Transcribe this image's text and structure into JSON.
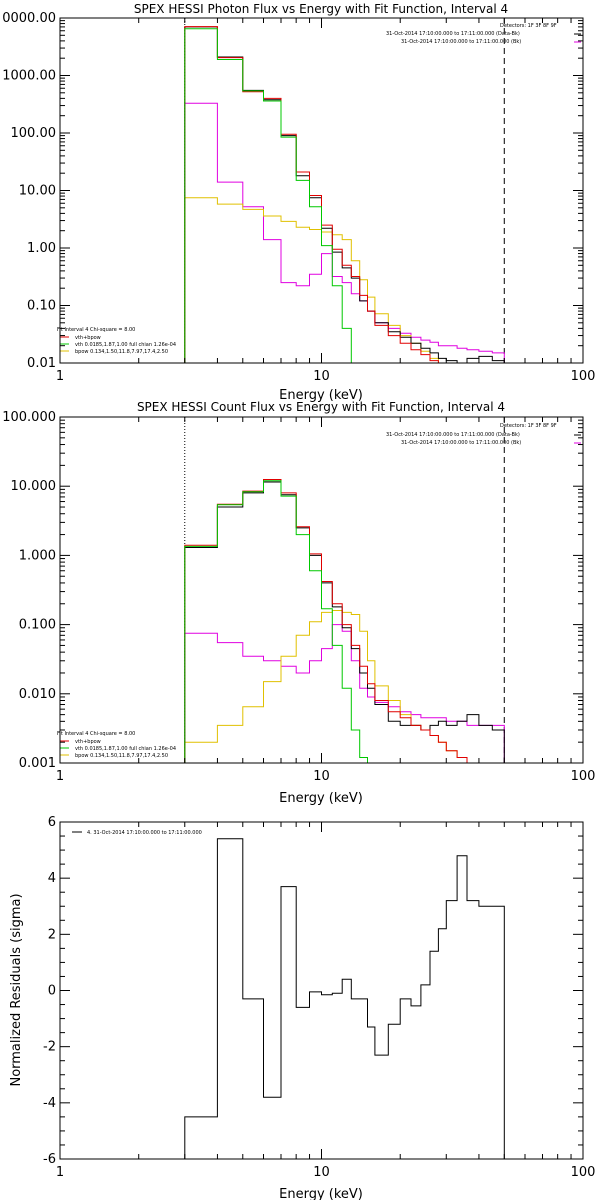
{
  "colors": {
    "data": "#000000",
    "total": "#e00000",
    "vth": "#00c800",
    "bpow": "#e0c000",
    "background": "#e000e0"
  },
  "chart_data": [
    {
      "type": "line",
      "title": "SPEX HESSI Photon Flux vs Energy with Fit Function, Interval 4",
      "xlabel": "Energy (keV)",
      "ylabel": "",
      "x_scale": "log",
      "y_scale": "log",
      "xlim": [
        1,
        100
      ],
      "ylim": [
        0.01,
        10000
      ],
      "xtick_labels": [
        "1",
        "10",
        "100"
      ],
      "ytick_labels": [
        "0.01",
        "0.10",
        "1.00",
        "10.00",
        "100.00",
        "1000.00",
        "0000.00"
      ],
      "bin_edges_kev": [
        3,
        4,
        5,
        6,
        7,
        8,
        9,
        10,
        11,
        12,
        13,
        14,
        15,
        16,
        18,
        20,
        22,
        24,
        26,
        28,
        30,
        33,
        36,
        40,
        45,
        50
      ],
      "markers": {
        "dotted_line_kev": 3,
        "dashed_line_kev": 50
      },
      "legend_topright": [
        "Detectors: 1F 3F 8F 9F",
        "31-Oct-2014 17:10:00.000 to 17:11:00.000 (Data-Bk)",
        "31-Oct-2014 17:10:00.000 to 17:11:00.000 (Bk)"
      ],
      "legend_bottomleft": [
        "Fit Interval 4   Chi-square = 8.00",
        "vth+bpow",
        "vth 0.0185,1.87,1.00  full chian 1.26e-04",
        "bpow 0.134,1.50,11.8,7.97,17.4,2.50"
      ],
      "series": [
        {
          "name": "Data-Bk",
          "values": [
            7000,
            2100,
            550,
            380,
            90,
            18,
            7.5,
            2.2,
            0.85,
            0.45,
            0.3,
            0.12,
            0.08,
            0.05,
            0.035,
            0.028,
            0.022,
            0.018,
            0.015,
            0.012,
            0.011,
            0.01,
            0.012,
            0.013,
            0.011
          ]
        },
        {
          "name": "vth+bpow",
          "values": [
            7100,
            2050,
            520,
            400,
            95,
            21,
            8.2,
            2.5,
            0.95,
            0.5,
            0.32,
            0.15,
            0.08,
            0.045,
            0.03,
            0.022,
            0.017,
            0.014,
            0.011,
            0.009,
            0.007
          ]
        },
        {
          "name": "vth 0.0185,1.87,1.00  full chian 1.26e-04",
          "values": [
            6500,
            1900,
            540,
            360,
            85,
            15,
            5.2,
            1.1,
            0.22,
            0.04,
            0.009,
            0.002
          ]
        },
        {
          "name": "bpow 0.134,1.50,11.8,7.97,17.4,2.50",
          "values": [
            7.5,
            5.8,
            4.7,
            3.6,
            2.9,
            2.3,
            2.1,
            1.9,
            1.7,
            1.4,
            0.6,
            0.28,
            0.14,
            0.072,
            0.045,
            0.03,
            0.022,
            0.016,
            0.012,
            0.009,
            0.007
          ]
        },
        {
          "name": "Bk",
          "values": [
            330,
            14,
            5.2,
            1.4,
            0.25,
            0.22,
            0.35,
            0.8,
            0.32,
            0.25,
            0.16,
            0.12,
            0.08,
            0.05,
            0.04,
            0.033,
            0.028,
            0.025,
            0.023,
            0.02,
            0.02,
            0.018,
            0.017,
            0.016,
            0.015
          ]
        }
      ]
    },
    {
      "type": "line",
      "title": "SPEX HESSI Count Flux vs Energy with Fit Function, Interval 4",
      "xlabel": "Energy (keV)",
      "ylabel": "",
      "x_scale": "log",
      "y_scale": "log",
      "xlim": [
        1,
        100
      ],
      "ylim": [
        0.001,
        100
      ],
      "xtick_labels": [
        "1",
        "10",
        "100"
      ],
      "ytick_labels": [
        "0.001",
        "0.010",
        "0.100",
        "1.000",
        "10.000",
        "100.000"
      ],
      "bin_edges_kev": [
        3,
        4,
        5,
        6,
        7,
        8,
        9,
        10,
        11,
        12,
        13,
        14,
        15,
        16,
        18,
        20,
        22,
        24,
        26,
        28,
        30,
        33,
        36,
        40,
        45,
        50
      ],
      "markers": {
        "dotted_line_kev": 3,
        "dashed_line_kev": 50
      },
      "legend_topright": [
        "Detectors: 1F 3F 8F 9F",
        "31-Oct-2014 17:10:00.000 to 17:11:00.000 (Data-Bk)",
        "31-Oct-2014 17:10:00.000 to 17:11:00.000 (Bk)"
      ],
      "legend_bottomleft": [
        "Fit Interval 4   Chi-square = 8.00",
        "vth+bpow",
        "vth 0.0185,1.87,1.00  full chian 1.26e-04",
        "bpow 0.134,1.50,11.8,7.97,17.4,2.50"
      ],
      "series": [
        {
          "name": "Data-Bk",
          "values": [
            1.3,
            5.0,
            8.0,
            11.5,
            7.5,
            2.5,
            1.0,
            0.4,
            0.18,
            0.09,
            0.045,
            0.02,
            0.012,
            0.007,
            0.004,
            0.0035,
            0.0035,
            0.003,
            0.0035,
            0.004,
            0.0035,
            0.004,
            0.005,
            0.0035,
            0.003
          ]
        },
        {
          "name": "vth+bpow",
          "values": [
            1.4,
            5.5,
            8.5,
            12.5,
            8.0,
            2.6,
            1.05,
            0.42,
            0.2,
            0.1,
            0.05,
            0.025,
            0.014,
            0.008,
            0.0055,
            0.0045,
            0.0035,
            0.003,
            0.0025,
            0.002,
            0.0015,
            0.0012,
            0.001
          ]
        },
        {
          "name": "vth 0.0185,1.87,1.00  full chian 1.26e-04",
          "values": [
            1.35,
            5.4,
            8.3,
            12.0,
            7.2,
            2.0,
            0.6,
            0.17,
            0.05,
            0.012,
            0.003,
            0.0012
          ]
        },
        {
          "name": "bpow 0.134,1.50,11.8,7.97,17.4,2.50",
          "values": [
            0.002,
            0.0035,
            0.0065,
            0.015,
            0.035,
            0.07,
            0.11,
            0.15,
            0.16,
            0.15,
            0.14,
            0.08,
            0.03,
            0.013,
            0.008,
            0.005,
            0.0035,
            0.003,
            0.0025,
            0.002,
            0.0015,
            0.0012,
            0.001
          ]
        },
        {
          "name": "Bk",
          "values": [
            0.075,
            0.055,
            0.035,
            0.03,
            0.025,
            0.02,
            0.03,
            0.045,
            0.1,
            0.08,
            0.03,
            0.012,
            0.009,
            0.0075,
            0.0065,
            0.0055,
            0.005,
            0.0045,
            0.0045,
            0.0045,
            0.004,
            0.004,
            0.0035,
            0.0035,
            0.0035
          ]
        }
      ]
    },
    {
      "type": "line",
      "title": "",
      "xlabel": "Energy (keV)",
      "ylabel": "Normalized Residuals (sigma)",
      "x_scale": "log",
      "y_scale": "linear",
      "xlim": [
        1,
        100
      ],
      "ylim": [
        -6,
        6
      ],
      "xtick_labels": [
        "1",
        "10",
        "100"
      ],
      "ytick_labels": [
        "-6",
        "-4",
        "-2",
        "0",
        "2",
        "4",
        "6"
      ],
      "bin_edges_kev": [
        3,
        4,
        5,
        6,
        7,
        8,
        9,
        10,
        11,
        12,
        13,
        14,
        15,
        16,
        18,
        20,
        22,
        24,
        26,
        28,
        30,
        33,
        36,
        40,
        45,
        50
      ],
      "legend_topleft": "4. 31-Oct-2014 17:10:00.000 to 17:11:00.000",
      "series": [
        {
          "name": "4. 31-Oct-2014 17:10:00.000 to 17:11:00.000",
          "values": [
            -4.5,
            5.4,
            -0.3,
            -3.8,
            3.7,
            -0.6,
            -0.05,
            -0.15,
            -0.1,
            0.4,
            -0.3,
            -0.3,
            -1.3,
            -2.3,
            -1.2,
            -0.3,
            -0.55,
            0.2,
            1.4,
            2.2,
            3.2,
            4.8,
            3.2,
            3.0,
            3.0
          ]
        }
      ]
    }
  ]
}
